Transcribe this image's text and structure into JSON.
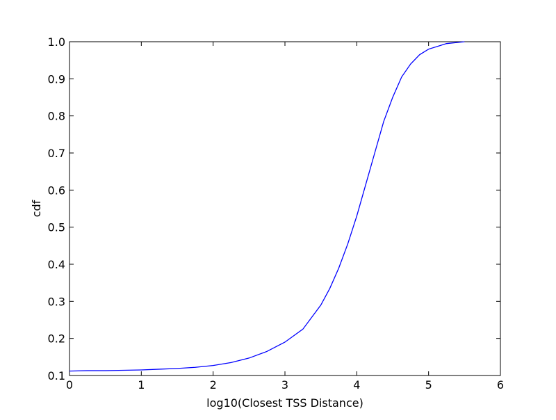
{
  "chart_data": {
    "type": "line",
    "xlabel": "log10(Closest TSS Distance)",
    "ylabel": "cdf",
    "x": [
      0,
      0.25,
      0.5,
      0.75,
      1,
      1.25,
      1.5,
      1.75,
      2,
      2.25,
      2.5,
      2.75,
      3,
      3.25,
      3.5,
      3.625,
      3.75,
      3.875,
      4,
      4.125,
      4.25,
      4.375,
      4.5,
      4.625,
      4.75,
      4.875,
      5,
      5.25,
      5.5
    ],
    "series": [
      {
        "color": "#0000ff",
        "values": [
          0.112,
          0.113,
          0.113,
          0.114,
          0.115,
          0.117,
          0.119,
          0.122,
          0.127,
          0.135,
          0.147,
          0.165,
          0.19,
          0.225,
          0.29,
          0.335,
          0.39,
          0.455,
          0.53,
          0.615,
          0.7,
          0.785,
          0.85,
          0.905,
          0.94,
          0.965,
          0.98,
          0.995,
          1.0
        ]
      }
    ],
    "xlim": [
      0,
      6
    ],
    "xticks": [
      0,
      1,
      2,
      3,
      4,
      5,
      6
    ],
    "ylim": [
      0.1,
      1
    ],
    "yticks": [
      0.1,
      0.2,
      0.3,
      0.4,
      0.5,
      0.6,
      0.7,
      0.8,
      0.9,
      {
        "value": 1,
        "label": "1.0"
      }
    ]
  }
}
